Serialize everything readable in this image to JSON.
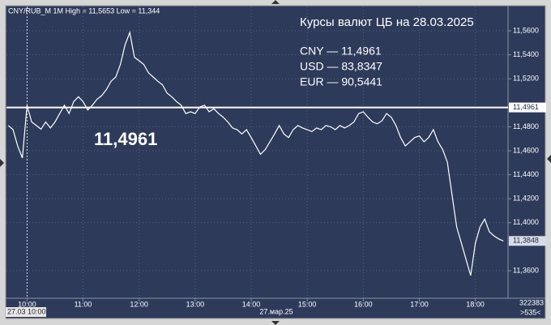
{
  "chart_data": {
    "type": "line",
    "header": "CNY/RUB_M 1M High = 11,5653 Low = 11,344",
    "title": "Курсы валют ЦБ на 28.03.2025",
    "rates": [
      "CNY — 11,4961",
      "USD — 83,8347",
      "EUR — 90,5441"
    ],
    "reference_line": {
      "value": 11.4961,
      "label": "11,4961"
    },
    "last_price": {
      "value": 11.3848,
      "label": "11,3848"
    },
    "cursor_label": "27.03 10:00",
    "date_label": "27.мар.25",
    "volume": "322383",
    "scroll": ">535<",
    "color": "#ffffff",
    "grid": true,
    "x": [
      "09:40",
      "09:45",
      "09:50",
      "09:55",
      "10:00",
      "10:05",
      "10:10",
      "10:15",
      "10:20",
      "10:25",
      "10:30",
      "10:35",
      "10:40",
      "10:45",
      "10:50",
      "10:55",
      "11:00",
      "11:05",
      "11:10",
      "11:15",
      "11:20",
      "11:25",
      "11:30",
      "11:35",
      "11:40",
      "11:45",
      "11:50",
      "11:55",
      "12:00",
      "12:05",
      "12:10",
      "12:15",
      "12:20",
      "12:25",
      "12:30",
      "12:35",
      "12:40",
      "12:45",
      "12:50",
      "12:55",
      "13:00",
      "13:05",
      "13:10",
      "13:15",
      "13:20",
      "13:25",
      "13:30",
      "13:35",
      "13:40",
      "13:45",
      "13:50",
      "13:55",
      "14:00",
      "14:05",
      "14:10",
      "14:15",
      "14:20",
      "14:25",
      "14:30",
      "14:35",
      "14:40",
      "14:45",
      "14:50",
      "14:55",
      "15:00",
      "15:05",
      "15:10",
      "15:15",
      "15:20",
      "15:25",
      "15:30",
      "15:35",
      "15:40",
      "15:45",
      "15:50",
      "15:55",
      "16:00",
      "16:05",
      "16:10",
      "16:15",
      "16:20",
      "16:25",
      "16:30",
      "16:35",
      "16:40",
      "16:45",
      "16:50",
      "16:55",
      "17:00",
      "17:05",
      "17:10",
      "17:15",
      "17:20",
      "17:25",
      "17:30",
      "17:35",
      "17:40",
      "17:45",
      "17:50",
      "17:55",
      "18:00",
      "18:05",
      "18:10",
      "18:15",
      "18:20",
      "18:25",
      "18:30"
    ],
    "values": [
      11.481,
      11.4776,
      11.464,
      11.454,
      11.4978,
      11.484,
      11.481,
      11.478,
      11.484,
      11.479,
      11.484,
      11.491,
      11.498,
      11.491,
      11.501,
      11.505,
      11.501,
      11.494,
      11.498,
      11.503,
      11.506,
      11.511,
      11.518,
      11.5215,
      11.532,
      11.5485,
      11.5586,
      11.538,
      11.535,
      11.532,
      11.525,
      11.5215,
      11.518,
      11.515,
      11.508,
      11.505,
      11.501,
      11.498,
      11.491,
      11.4925,
      11.491,
      11.4965,
      11.498,
      11.4925,
      11.495,
      11.491,
      11.488,
      11.484,
      11.479,
      11.4776,
      11.474,
      11.4776,
      11.471,
      11.464,
      11.457,
      11.461,
      11.4675,
      11.474,
      11.481,
      11.474,
      11.471,
      11.4776,
      11.481,
      11.479,
      11.4776,
      11.476,
      11.479,
      11.4776,
      11.481,
      11.48,
      11.4776,
      11.481,
      11.479,
      11.481,
      11.484,
      11.491,
      11.4925,
      11.488,
      11.484,
      11.4825,
      11.485,
      11.491,
      11.488,
      11.481,
      11.471,
      11.464,
      11.4675,
      11.471,
      11.4724,
      11.4675,
      11.471,
      11.4776,
      11.4675,
      11.461,
      11.4505,
      11.4235,
      11.3965,
      11.383,
      11.3695,
      11.356,
      11.383,
      11.3965,
      11.403,
      11.3925,
      11.389,
      11.3865,
      11.3848
    ],
    "xlim": [
      "09:38",
      "18:35"
    ],
    "xticks": [
      "10:00",
      "11:00",
      "12:00",
      "13:00",
      "14:00",
      "15:00",
      "16:00",
      "17:00",
      "18:00"
    ],
    "ylim": [
      11.337,
      11.5803
    ],
    "yticks": [
      {
        "value": 11.56,
        "label": "11,5600"
      },
      {
        "value": 11.54,
        "label": "11,5400"
      },
      {
        "value": 11.52,
        "label": "11,5200"
      },
      {
        "value": 11.48,
        "label": "11,4800"
      },
      {
        "value": 11.46,
        "label": "11,4600"
      },
      {
        "value": 11.44,
        "label": "11,4400"
      },
      {
        "value": 11.42,
        "label": "11,4200"
      },
      {
        "value": 11.4,
        "label": "11,4000"
      },
      {
        "value": 11.36,
        "label": "11,3600"
      }
    ]
  }
}
